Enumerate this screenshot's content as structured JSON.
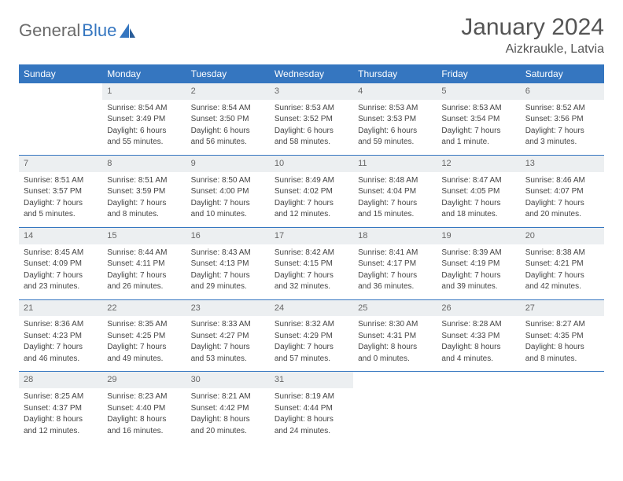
{
  "logo": {
    "text1": "General",
    "text2": "Blue"
  },
  "title": {
    "month": "January 2024",
    "location": "Aizkraukle, Latvia"
  },
  "colors": {
    "header_bg": "#3576c0",
    "header_text": "#ffffff",
    "daynum_bg": "#eceff1",
    "border": "#3576c0",
    "text": "#444444",
    "title_text": "#555555"
  },
  "day_headers": [
    "Sunday",
    "Monday",
    "Tuesday",
    "Wednesday",
    "Thursday",
    "Friday",
    "Saturday"
  ],
  "weeks": [
    {
      "nums": [
        "",
        "1",
        "2",
        "3",
        "4",
        "5",
        "6"
      ],
      "cells": [
        null,
        {
          "l1": "Sunrise: 8:54 AM",
          "l2": "Sunset: 3:49 PM",
          "l3": "Daylight: 6 hours",
          "l4": "and 55 minutes."
        },
        {
          "l1": "Sunrise: 8:54 AM",
          "l2": "Sunset: 3:50 PM",
          "l3": "Daylight: 6 hours",
          "l4": "and 56 minutes."
        },
        {
          "l1": "Sunrise: 8:53 AM",
          "l2": "Sunset: 3:52 PM",
          "l3": "Daylight: 6 hours",
          "l4": "and 58 minutes."
        },
        {
          "l1": "Sunrise: 8:53 AM",
          "l2": "Sunset: 3:53 PM",
          "l3": "Daylight: 6 hours",
          "l4": "and 59 minutes."
        },
        {
          "l1": "Sunrise: 8:53 AM",
          "l2": "Sunset: 3:54 PM",
          "l3": "Daylight: 7 hours",
          "l4": "and 1 minute."
        },
        {
          "l1": "Sunrise: 8:52 AM",
          "l2": "Sunset: 3:56 PM",
          "l3": "Daylight: 7 hours",
          "l4": "and 3 minutes."
        }
      ]
    },
    {
      "nums": [
        "7",
        "8",
        "9",
        "10",
        "11",
        "12",
        "13"
      ],
      "cells": [
        {
          "l1": "Sunrise: 8:51 AM",
          "l2": "Sunset: 3:57 PM",
          "l3": "Daylight: 7 hours",
          "l4": "and 5 minutes."
        },
        {
          "l1": "Sunrise: 8:51 AM",
          "l2": "Sunset: 3:59 PM",
          "l3": "Daylight: 7 hours",
          "l4": "and 8 minutes."
        },
        {
          "l1": "Sunrise: 8:50 AM",
          "l2": "Sunset: 4:00 PM",
          "l3": "Daylight: 7 hours",
          "l4": "and 10 minutes."
        },
        {
          "l1": "Sunrise: 8:49 AM",
          "l2": "Sunset: 4:02 PM",
          "l3": "Daylight: 7 hours",
          "l4": "and 12 minutes."
        },
        {
          "l1": "Sunrise: 8:48 AM",
          "l2": "Sunset: 4:04 PM",
          "l3": "Daylight: 7 hours",
          "l4": "and 15 minutes."
        },
        {
          "l1": "Sunrise: 8:47 AM",
          "l2": "Sunset: 4:05 PM",
          "l3": "Daylight: 7 hours",
          "l4": "and 18 minutes."
        },
        {
          "l1": "Sunrise: 8:46 AM",
          "l2": "Sunset: 4:07 PM",
          "l3": "Daylight: 7 hours",
          "l4": "and 20 minutes."
        }
      ]
    },
    {
      "nums": [
        "14",
        "15",
        "16",
        "17",
        "18",
        "19",
        "20"
      ],
      "cells": [
        {
          "l1": "Sunrise: 8:45 AM",
          "l2": "Sunset: 4:09 PM",
          "l3": "Daylight: 7 hours",
          "l4": "and 23 minutes."
        },
        {
          "l1": "Sunrise: 8:44 AM",
          "l2": "Sunset: 4:11 PM",
          "l3": "Daylight: 7 hours",
          "l4": "and 26 minutes."
        },
        {
          "l1": "Sunrise: 8:43 AM",
          "l2": "Sunset: 4:13 PM",
          "l3": "Daylight: 7 hours",
          "l4": "and 29 minutes."
        },
        {
          "l1": "Sunrise: 8:42 AM",
          "l2": "Sunset: 4:15 PM",
          "l3": "Daylight: 7 hours",
          "l4": "and 32 minutes."
        },
        {
          "l1": "Sunrise: 8:41 AM",
          "l2": "Sunset: 4:17 PM",
          "l3": "Daylight: 7 hours",
          "l4": "and 36 minutes."
        },
        {
          "l1": "Sunrise: 8:39 AM",
          "l2": "Sunset: 4:19 PM",
          "l3": "Daylight: 7 hours",
          "l4": "and 39 minutes."
        },
        {
          "l1": "Sunrise: 8:38 AM",
          "l2": "Sunset: 4:21 PM",
          "l3": "Daylight: 7 hours",
          "l4": "and 42 minutes."
        }
      ]
    },
    {
      "nums": [
        "21",
        "22",
        "23",
        "24",
        "25",
        "26",
        "27"
      ],
      "cells": [
        {
          "l1": "Sunrise: 8:36 AM",
          "l2": "Sunset: 4:23 PM",
          "l3": "Daylight: 7 hours",
          "l4": "and 46 minutes."
        },
        {
          "l1": "Sunrise: 8:35 AM",
          "l2": "Sunset: 4:25 PM",
          "l3": "Daylight: 7 hours",
          "l4": "and 49 minutes."
        },
        {
          "l1": "Sunrise: 8:33 AM",
          "l2": "Sunset: 4:27 PM",
          "l3": "Daylight: 7 hours",
          "l4": "and 53 minutes."
        },
        {
          "l1": "Sunrise: 8:32 AM",
          "l2": "Sunset: 4:29 PM",
          "l3": "Daylight: 7 hours",
          "l4": "and 57 minutes."
        },
        {
          "l1": "Sunrise: 8:30 AM",
          "l2": "Sunset: 4:31 PM",
          "l3": "Daylight: 8 hours",
          "l4": "and 0 minutes."
        },
        {
          "l1": "Sunrise: 8:28 AM",
          "l2": "Sunset: 4:33 PM",
          "l3": "Daylight: 8 hours",
          "l4": "and 4 minutes."
        },
        {
          "l1": "Sunrise: 8:27 AM",
          "l2": "Sunset: 4:35 PM",
          "l3": "Daylight: 8 hours",
          "l4": "and 8 minutes."
        }
      ]
    },
    {
      "nums": [
        "28",
        "29",
        "30",
        "31",
        "",
        "",
        ""
      ],
      "cells": [
        {
          "l1": "Sunrise: 8:25 AM",
          "l2": "Sunset: 4:37 PM",
          "l3": "Daylight: 8 hours",
          "l4": "and 12 minutes."
        },
        {
          "l1": "Sunrise: 8:23 AM",
          "l2": "Sunset: 4:40 PM",
          "l3": "Daylight: 8 hours",
          "l4": "and 16 minutes."
        },
        {
          "l1": "Sunrise: 8:21 AM",
          "l2": "Sunset: 4:42 PM",
          "l3": "Daylight: 8 hours",
          "l4": "and 20 minutes."
        },
        {
          "l1": "Sunrise: 8:19 AM",
          "l2": "Sunset: 4:44 PM",
          "l3": "Daylight: 8 hours",
          "l4": "and 24 minutes."
        },
        null,
        null,
        null
      ]
    }
  ]
}
